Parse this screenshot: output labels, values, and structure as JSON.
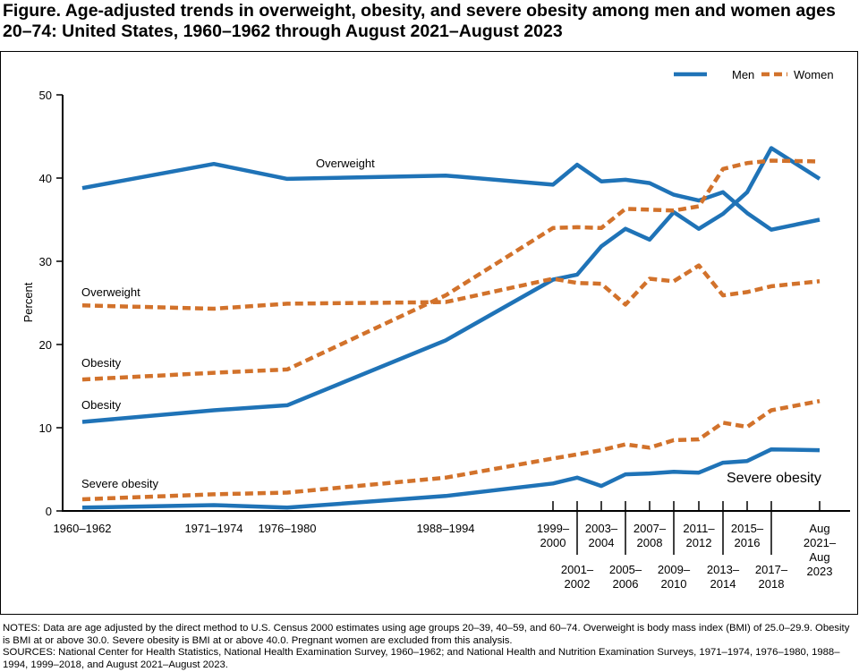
{
  "title": "Figure. Age-adjusted trends in overweight, obesity, and severe obesity among men and women ages 20–74: United States, 1960–1962 through August 2021–August 2023",
  "chart_data": {
    "type": "line",
    "ylabel": "Percent",
    "ylim": [
      0,
      50
    ],
    "yticks": [
      "0",
      "10",
      "20",
      "30",
      "40",
      "50"
    ],
    "grid": false,
    "legend_position": "top-right",
    "categories": [
      "1960–1962",
      "1971–1974",
      "1976–1980",
      "1988–1994",
      "1999–2000",
      "2001–2002",
      "2003–2004",
      "2005–2006",
      "2007–2008",
      "2009–2010",
      "2011–2012",
      "2013–2014",
      "2015–2016",
      "2017–2018",
      "Aug 2021–Aug 2023"
    ],
    "legend": [
      {
        "name": "Men",
        "color": "#1f73b7",
        "style": "solid"
      },
      {
        "name": "Women",
        "color": "#d2722b",
        "style": "dashed"
      }
    ],
    "series": [
      {
        "sex": "Men",
        "measure": "Overweight",
        "values": [
          38.8,
          41.7,
          39.9,
          40.3,
          39.2,
          41.6,
          39.6,
          39.8,
          39.4,
          38.0,
          37.3,
          38.3,
          35.8,
          33.8,
          35.0
        ]
      },
      {
        "sex": "Men",
        "measure": "Obesity",
        "values": [
          10.7,
          12.1,
          12.7,
          20.5,
          27.8,
          28.4,
          31.8,
          33.9,
          32.6,
          35.9,
          33.9,
          35.7,
          38.3,
          43.6,
          39.9
        ]
      },
      {
        "sex": "Men",
        "measure": "Severe obesity",
        "values": [
          0.4,
          0.7,
          0.4,
          1.8,
          3.3,
          4.0,
          3.0,
          4.4,
          4.5,
          4.7,
          4.6,
          5.8,
          6.0,
          7.4,
          7.3
        ]
      },
      {
        "sex": "Women",
        "measure": "Overweight",
        "values": [
          24.7,
          24.3,
          24.9,
          25.1,
          27.9,
          27.4,
          27.3,
          24.8,
          27.9,
          27.6,
          29.5,
          25.9,
          26.3,
          27.0,
          27.6
        ]
      },
      {
        "sex": "Women",
        "measure": "Obesity",
        "values": [
          15.8,
          16.6,
          17.0,
          25.9,
          34.0,
          34.1,
          34.0,
          36.3,
          36.2,
          36.1,
          36.6,
          41.1,
          41.8,
          42.1,
          42.0
        ]
      },
      {
        "sex": "Women",
        "measure": "Severe obesity",
        "values": [
          1.4,
          2.0,
          2.2,
          4.0,
          6.3,
          6.8,
          7.3,
          8.0,
          7.6,
          8.5,
          8.6,
          10.6,
          10.1,
          12.1,
          13.2
        ]
      }
    ],
    "annotations": {
      "men_overweight": "Overweight",
      "women_overweight": "Overweight",
      "women_obesity": "Obesity",
      "men_obesity": "Obesity",
      "women_severe": "Severe obesity",
      "men_severe": "Severe obesity"
    }
  },
  "notes": [
    "NOTES: Data are age adjusted by the direct method to U.S. Census 2000 estimates using age groups 20–39, 40–59, and 60–74. Overweight is body mass index (BMI) of 25.0–29.9. Obesity is BMI at or above 30.0. Severe obesity is BMI at or above 40.0. Pregnant women are excluded from this analysis.",
    "SOURCES: National Center for Health Statistics, National Health Examination Survey, 1960–1962; and National Health and Nutrition Examination Surveys, 1971–1974, 1976–1980, 1988–1994, 1999–2018, and August 2021–August 2023."
  ]
}
